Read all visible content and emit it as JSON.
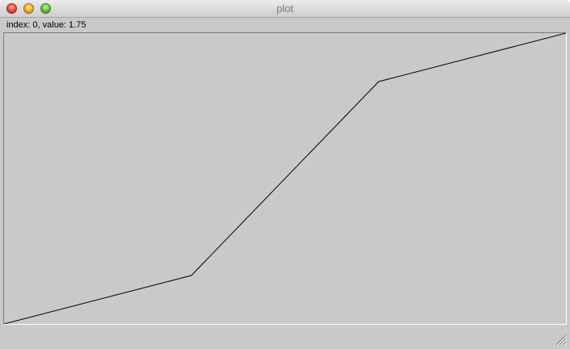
{
  "window": {
    "title": "plot"
  },
  "status": {
    "readout": "index: 0, value: 1.75"
  },
  "colors": {
    "background": "#c9c9c9",
    "line": "#000000"
  },
  "icons": {
    "close": "close-icon",
    "minimize": "minimize-icon",
    "maximize": "maximize-icon",
    "resize": "resize-grip-icon"
  },
  "chart_data": {
    "type": "line",
    "x": [
      0,
      1,
      2,
      3
    ],
    "values": [
      0.0,
      1.0,
      5.0,
      6.0
    ],
    "ylim": [
      0,
      6
    ],
    "grid": false
  }
}
